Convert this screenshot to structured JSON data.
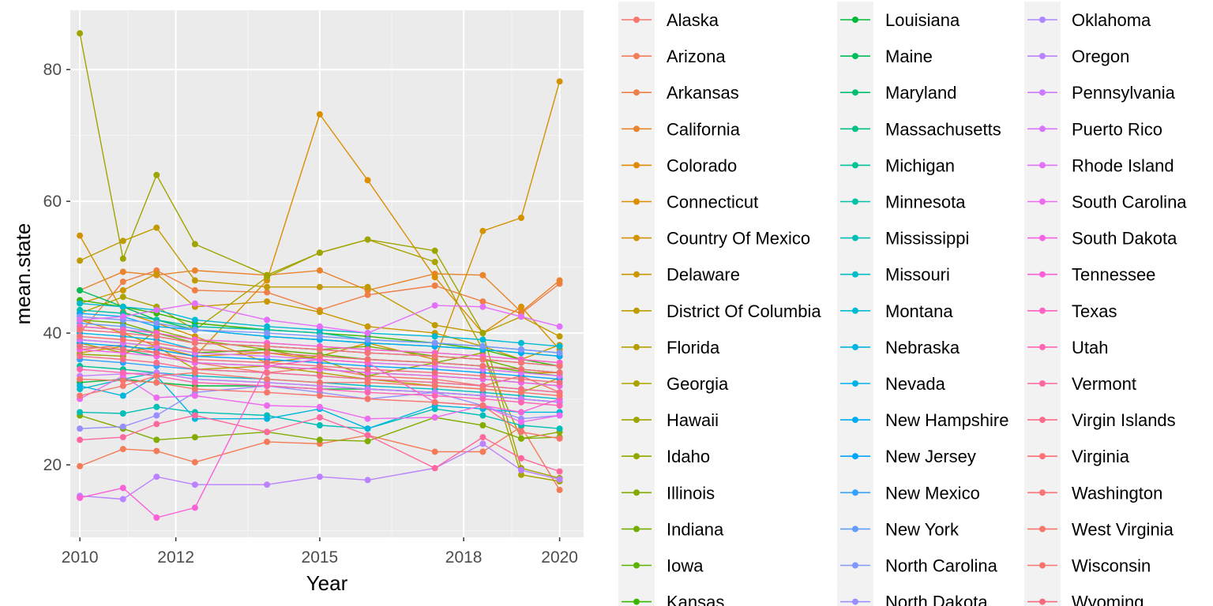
{
  "chart_data": {
    "type": "line",
    "xlabel": "Year",
    "ylabel": "mean.state",
    "xlim": [
      2009.8,
      2020.5
    ],
    "ylim": [
      9,
      89
    ],
    "x_ticks": [
      2010,
      2012,
      2015,
      2018,
      2020
    ],
    "y_ticks": [
      20,
      40,
      60,
      80
    ],
    "grid": true,
    "legend_position": "right",
    "x": [
      2010,
      2010.9,
      2011.6,
      2012.4,
      2013.9,
      2015,
      2016,
      2017.4,
      2018.4,
      2019.2,
      2020
    ],
    "series": [
      {
        "name": "Alaska",
        "color": "#F8766D",
        "values": [
          37.5,
          38.2,
          37.0,
          35.5,
          34.0,
          34.8,
          33.5,
          33.0,
          32.0,
          33.5,
          31.0
        ]
      },
      {
        "name": "Arizona",
        "color": "#F47B58",
        "values": [
          19.8,
          22.4,
          22.1,
          20.4,
          23.5,
          23.2,
          24.5,
          22.0,
          22.0,
          25.8,
          16.2
        ]
      },
      {
        "name": "Arkansas",
        "color": "#EF7F46",
        "values": [
          40.0,
          47.8,
          49.5,
          46.5,
          46.2,
          43.5,
          45.8,
          47.2,
          44.8,
          43.0,
          47.5
        ]
      },
      {
        "name": "California",
        "color": "#E9842C",
        "values": [
          46.5,
          49.3,
          48.8,
          49.5,
          48.8,
          49.5,
          46.5,
          49.0,
          48.8,
          43.2,
          48.0
        ]
      },
      {
        "name": "Colorado",
        "color": "#E38900",
        "values": [
          42.0,
          40.0,
          38.0,
          36.5,
          37.0,
          36.0,
          35.5,
          35.0,
          34.5,
          34.0,
          34.0
        ]
      },
      {
        "name": "Connecticut",
        "color": "#DB8E00",
        "values": [
          37.0,
          38.0,
          37.5,
          36.5,
          48.0,
          73.2,
          63.2,
          48.5,
          40.0,
          44.0,
          37.5
        ]
      },
      {
        "name": "Country Of Mexico",
        "color": "#D39200",
        "values": [
          54.8,
          43.2,
          41.5,
          39.5,
          35.5,
          36.5,
          38.5,
          36.0,
          55.5,
          57.5,
          78.2
        ]
      },
      {
        "name": "Delaware",
        "color": "#CA9700",
        "values": [
          44.5,
          46.5,
          49.0,
          44.0,
          44.8,
          43.2,
          41.0,
          40.0,
          38.0,
          36.0,
          38.2
        ]
      },
      {
        "name": "District Of Columbia",
        "color": "#C09B00",
        "values": [
          51.0,
          54.0,
          56.0,
          48.0,
          47.0,
          47.0,
          47.0,
          41.2,
          40.0,
          42.5,
          39.5
        ]
      },
      {
        "name": "Florida",
        "color": "#B69E00",
        "values": [
          38.5,
          37.0,
          38.0,
          34.5,
          35.0,
          34.0,
          33.0,
          32.0,
          31.5,
          31.0,
          33.2
        ]
      },
      {
        "name": "Georgia",
        "color": "#ABA300",
        "values": [
          43.0,
          45.5,
          44.0,
          40.5,
          48.5,
          52.2,
          54.2,
          50.8,
          37.5,
          18.5,
          17.5
        ]
      },
      {
        "name": "Hawaii",
        "color": "#9FA500",
        "values": [
          85.5,
          51.3,
          64.0,
          53.5,
          48.8,
          52.2,
          54.2,
          52.5,
          40.0,
          19.5,
          18.0
        ]
      },
      {
        "name": "Idaho",
        "color": "#91A800",
        "values": [
          36.8,
          36.5,
          40.5,
          39.0,
          37.5,
          36.0,
          33.5,
          35.5,
          37.0,
          24.0,
          25.0
        ]
      },
      {
        "name": "Illinois",
        "color": "#82AB00",
        "values": [
          27.5,
          25.5,
          23.8,
          24.2,
          25.0,
          23.8,
          23.6,
          27.2,
          26.0,
          24.0,
          24.2
        ]
      },
      {
        "name": "Indiana",
        "color": "#71AE00",
        "values": [
          42.0,
          41.5,
          40.0,
          38.5,
          38.0,
          37.5,
          38.0,
          36.5,
          36.0,
          34.5,
          34.0
        ]
      },
      {
        "name": "Iowa",
        "color": "#5BB300",
        "values": [
          39.0,
          38.5,
          38.0,
          37.0,
          37.5,
          36.8,
          36.0,
          35.5,
          35.0,
          34.2,
          33.5
        ]
      },
      {
        "name": "Kansas",
        "color": "#39B600",
        "values": [
          45.0,
          44.0,
          43.0,
          41.5,
          40.5,
          40.0,
          39.5,
          38.5,
          37.5,
          36.0,
          35.0
        ]
      },
      {
        "name": "Louisiana",
        "color": "#00BA38",
        "values": [
          32.5,
          33.0,
          32.5,
          32.0,
          32.0,
          31.5,
          31.5,
          31.0,
          30.5,
          30.0,
          29.5
        ]
      },
      {
        "name": "Maine",
        "color": "#00BC59",
        "values": [
          46.5,
          44.0,
          42.0,
          40.5,
          39.5,
          39.0,
          38.5,
          38.0,
          37.5,
          37.0,
          36.5
        ]
      },
      {
        "name": "Maryland",
        "color": "#00BE6F",
        "values": [
          38.0,
          37.5,
          36.5,
          35.5,
          35.0,
          34.5,
          34.0,
          33.5,
          33.0,
          32.5,
          32.0
        ]
      },
      {
        "name": "Massachusetts",
        "color": "#00C084",
        "values": [
          41.0,
          40.5,
          39.5,
          38.5,
          38.0,
          37.5,
          37.0,
          36.5,
          36.0,
          35.5,
          35.0
        ]
      },
      {
        "name": "Michigan",
        "color": "#00C096",
        "values": [
          35.0,
          34.5,
          34.0,
          33.0,
          32.5,
          32.0,
          31.5,
          31.0,
          30.5,
          30.0,
          29.5
        ]
      },
      {
        "name": "Minnesota",
        "color": "#00C0A7",
        "values": [
          43.5,
          43.0,
          42.0,
          41.0,
          40.5,
          40.0,
          39.0,
          38.5,
          38.0,
          37.5,
          37.0
        ]
      },
      {
        "name": "Mississippi",
        "color": "#00BFB7",
        "values": [
          28.0,
          27.8,
          28.8,
          28.0,
          27.5,
          26.0,
          25.5,
          28.5,
          27.5,
          26.0,
          25.5
        ]
      },
      {
        "name": "Missouri",
        "color": "#00BDC5",
        "values": [
          31.5,
          33.0,
          34.0,
          33.5,
          33.0,
          32.5,
          32.0,
          31.5,
          31.0,
          30.5,
          30.0
        ]
      },
      {
        "name": "Montana",
        "color": "#00BAD3",
        "values": [
          44.5,
          44.0,
          43.5,
          42.0,
          41.0,
          40.5,
          40.0,
          39.5,
          39.0,
          38.5,
          38.0
        ]
      },
      {
        "name": "Nebraska",
        "color": "#00B6E0",
        "values": [
          32.0,
          30.5,
          33.5,
          27.0,
          27.0,
          28.5,
          25.5,
          29.0,
          28.5,
          28.0,
          28.0
        ]
      },
      {
        "name": "Nevada",
        "color": "#00B2EB",
        "values": [
          40.0,
          39.5,
          39.0,
          37.5,
          37.0,
          36.5,
          36.0,
          35.5,
          35.0,
          34.5,
          34.0
        ]
      },
      {
        "name": "New Hampshire",
        "color": "#00ACF5",
        "values": [
          43.0,
          42.5,
          41.0,
          40.5,
          39.5,
          39.0,
          38.5,
          38.0,
          37.5,
          37.0,
          36.5
        ]
      },
      {
        "name": "New Jersey",
        "color": "#00A6FD",
        "values": [
          38.5,
          38.0,
          37.5,
          36.5,
          36.0,
          35.5,
          35.0,
          34.5,
          34.0,
          33.5,
          33.0
        ]
      },
      {
        "name": "New Mexico",
        "color": "#35A1FF",
        "values": [
          36.0,
          35.5,
          35.0,
          34.5,
          34.0,
          33.5,
          33.0,
          32.5,
          32.0,
          31.5,
          31.0
        ]
      },
      {
        "name": "New York",
        "color": "#619CFF",
        "values": [
          41.5,
          41.0,
          40.0,
          39.0,
          38.5,
          38.0,
          37.5,
          37.0,
          36.5,
          36.0,
          35.5
        ]
      },
      {
        "name": "North Carolina",
        "color": "#7F97FF",
        "values": [
          42.5,
          42.0,
          41.5,
          40.5,
          40.0,
          39.5,
          39.0,
          38.5,
          38.0,
          37.5,
          37.0
        ]
      },
      {
        "name": "North Dakota",
        "color": "#988FFF",
        "values": [
          25.5,
          25.8,
          27.5,
          31.0,
          32.0,
          31.0,
          30.0,
          31.0,
          29.0,
          27.0,
          27.5
        ]
      },
      {
        "name": "Oklahoma",
        "color": "#AA88FF",
        "values": [
          40.5,
          40.0,
          39.5,
          38.5,
          38.0,
          37.5,
          37.0,
          36.5,
          36.0,
          35.5,
          35.0
        ]
      },
      {
        "name": "Oregon",
        "color": "#BC81FF",
        "values": [
          15.3,
          14.8,
          18.2,
          17.0,
          17.0,
          18.2,
          17.7,
          19.5,
          23.2,
          19.2,
          17.8
        ]
      },
      {
        "name": "Pennsylvania",
        "color": "#CB7BFF",
        "values": [
          33.5,
          33.8,
          34.0,
          33.0,
          32.5,
          32.0,
          31.5,
          31.0,
          30.5,
          30.0,
          29.5
        ]
      },
      {
        "name": "Puerto Rico",
        "color": "#D875FF",
        "values": [
          39.0,
          38.5,
          38.0,
          37.0,
          36.5,
          36.0,
          35.5,
          35.0,
          34.5,
          34.0,
          33.5
        ]
      },
      {
        "name": "Rhode Island",
        "color": "#E46FF9",
        "values": [
          42.0,
          42.5,
          43.5,
          44.5,
          42.0,
          41.0,
          40.0,
          44.2,
          44.0,
          42.5,
          41.0
        ]
      },
      {
        "name": "South Carolina",
        "color": "#EE6BEF",
        "values": [
          30.0,
          33.5,
          30.2,
          30.5,
          29.0,
          28.8,
          27.0,
          27.2,
          29.0,
          26.5,
          27.5
        ]
      },
      {
        "name": "South Dakota",
        "color": "#F664E5",
        "values": [
          37.5,
          37.0,
          36.5,
          35.5,
          35.0,
          34.5,
          34.0,
          33.5,
          33.0,
          32.5,
          32.0
        ]
      },
      {
        "name": "Tennessee",
        "color": "#FB61D7",
        "values": [
          15.0,
          16.5,
          12.0,
          13.5,
          35.0,
          36.0,
          35.5,
          29.5,
          29.0,
          28.0,
          30.0
        ]
      },
      {
        "name": "Texas",
        "color": "#FF62C6",
        "values": [
          41.0,
          40.5,
          40.0,
          39.0,
          38.5,
          38.0,
          37.5,
          37.0,
          36.5,
          36.0,
          35.5
        ]
      },
      {
        "name": "Utah",
        "color": "#FF65B3",
        "values": [
          34.5,
          34.0,
          33.5,
          32.5,
          32.0,
          31.5,
          31.0,
          30.5,
          30.0,
          29.5,
          29.0
        ]
      },
      {
        "name": "Vermont",
        "color": "#FF689F",
        "values": [
          23.8,
          24.2,
          26.2,
          27.5,
          25.0,
          27.2,
          24.5,
          19.5,
          24.2,
          21.0,
          19.0
        ]
      },
      {
        "name": "Virgin Islands",
        "color": "#FF6C89",
        "values": [
          36.5,
          36.0,
          35.5,
          34.5,
          34.0,
          33.5,
          33.0,
          32.5,
          32.0,
          31.5,
          31.0
        ]
      },
      {
        "name": "Virginia",
        "color": "#FD6F72",
        "values": [
          39.5,
          39.0,
          38.5,
          37.5,
          37.0,
          36.5,
          36.0,
          35.5,
          35.0,
          34.5,
          34.0
        ]
      },
      {
        "name": "Washington",
        "color": "#FA7376",
        "values": [
          40.5,
          40.0,
          39.5,
          38.5,
          38.0,
          37.5,
          37.0,
          36.5,
          36.0,
          35.5,
          35.0
        ]
      },
      {
        "name": "West Virginia",
        "color": "#F7756B",
        "values": [
          33.0,
          32.8,
          32.5,
          31.5,
          31.0,
          30.5,
          30.0,
          29.5,
          29.0,
          25.0,
          24.0
        ]
      },
      {
        "name": "Wisconsin",
        "color": "#F8766D",
        "values": [
          30.5,
          32.0,
          33.5,
          34.0,
          33.0,
          32.5,
          32.5,
          32.0,
          31.5,
          31.0,
          30.5
        ]
      },
      {
        "name": "Wyoming",
        "color": "#F46B7E",
        "values": [
          38.0,
          37.5,
          37.0,
          36.0,
          35.5,
          35.0,
          34.5,
          34.0,
          33.5,
          33.0,
          32.5
        ]
      }
    ]
  }
}
